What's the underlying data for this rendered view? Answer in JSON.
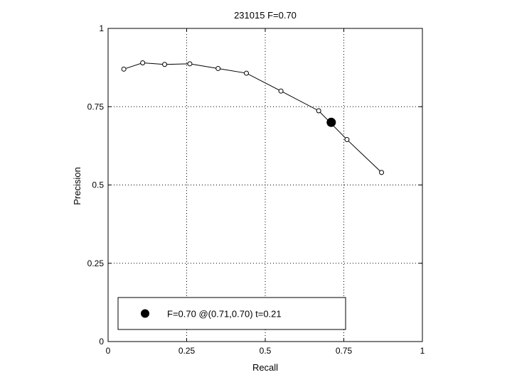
{
  "chart_data": {
    "type": "line",
    "title": "231015 F=0.70",
    "xlabel": "Recall",
    "ylabel": "Precision",
    "xlim": [
      0,
      1
    ],
    "ylim": [
      0,
      1
    ],
    "grid": true,
    "xticks": [
      {
        "value": 0,
        "label": "0"
      },
      {
        "value": 0.25,
        "label": "0.25"
      },
      {
        "value": 0.5,
        "label": "0.5"
      },
      {
        "value": 0.75,
        "label": "0.75"
      },
      {
        "value": 1,
        "label": "1"
      }
    ],
    "yticks": [
      {
        "value": 0,
        "label": "0"
      },
      {
        "value": 0.25,
        "label": "0.25"
      },
      {
        "value": 0.5,
        "label": "0.5"
      },
      {
        "value": 0.75,
        "label": "0.75"
      },
      {
        "value": 1,
        "label": "1"
      }
    ],
    "series": [
      {
        "marker": "open-circle",
        "color": "#000000",
        "points": [
          {
            "x": 0.05,
            "y": 0.87
          },
          {
            "x": 0.11,
            "y": 0.89
          },
          {
            "x": 0.18,
            "y": 0.885
          },
          {
            "x": 0.26,
            "y": 0.887
          },
          {
            "x": 0.35,
            "y": 0.872
          },
          {
            "x": 0.44,
            "y": 0.857
          },
          {
            "x": 0.55,
            "y": 0.8
          },
          {
            "x": 0.67,
            "y": 0.737
          },
          {
            "x": 0.76,
            "y": 0.645
          },
          {
            "x": 0.87,
            "y": 0.54
          }
        ]
      }
    ],
    "highlight": {
      "x": 0.71,
      "y": 0.7,
      "marker": "filled-circle",
      "color": "#000000"
    },
    "legend": {
      "position": "bottom-left",
      "entries": [
        {
          "label": "F=0.70 @(0.71,0.70) t=0.21",
          "marker": "filled-circle"
        }
      ]
    }
  }
}
